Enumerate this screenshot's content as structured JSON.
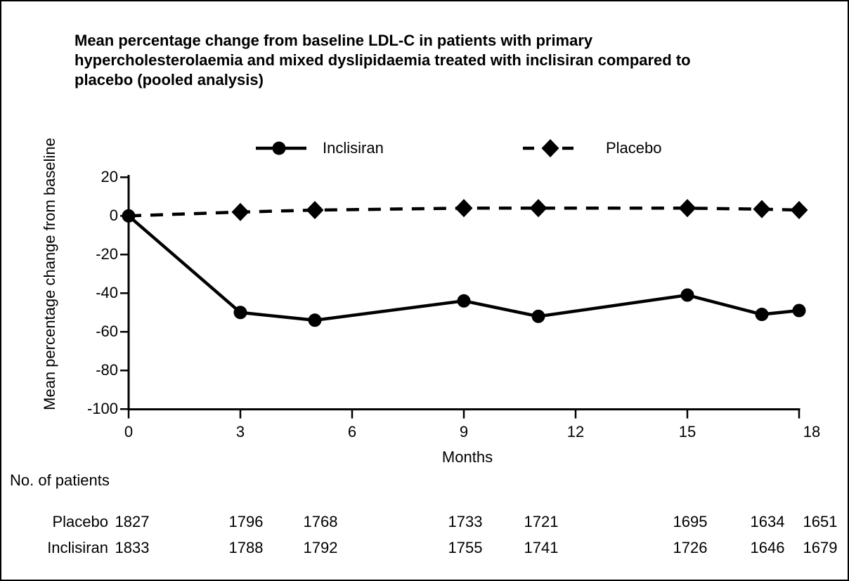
{
  "title": {
    "lines": [
      "Mean percentage change from baseline LDL-C in patients with primary",
      "hypercholesterolaemia and mixed dyslipidaemia treated with inclisiran compared to",
      "placebo (pooled analysis)"
    ]
  },
  "colors": {
    "foreground": "#000000",
    "background": "#ffffff"
  },
  "chart_data": {
    "type": "line",
    "x_label": "Months",
    "y_label": "Mean percentage change from baseline",
    "xlim": [
      0,
      18
    ],
    "ylim": [
      -100,
      20
    ],
    "x_ticks": [
      0,
      3,
      6,
      9,
      12,
      15,
      18
    ],
    "y_ticks": [
      20,
      0,
      -20,
      -40,
      -60,
      -80,
      -100
    ],
    "grid": false,
    "legend_position": "top",
    "x": [
      0,
      3,
      5,
      9,
      11,
      15,
      17,
      18
    ],
    "series": [
      {
        "name": "Inclisiran",
        "marker": "circle",
        "line_style": "solid",
        "values": [
          0,
          -50,
          -54,
          -44,
          -52,
          -41,
          -51,
          -49
        ]
      },
      {
        "name": "Placebo",
        "marker": "diamond",
        "line_style": "dashed",
        "values": [
          0,
          2,
          3,
          4,
          4,
          4,
          3.5,
          3
        ]
      }
    ]
  },
  "patients_table": {
    "heading": "No. of patients",
    "columns_months": [
      0,
      3,
      5,
      9,
      11,
      15,
      17,
      18
    ],
    "rows": [
      {
        "label": "Placebo",
        "values": [
          1827,
          1796,
          1768,
          1733,
          1721,
          1695,
          1634,
          1651
        ]
      },
      {
        "label": "Inclisiran",
        "values": [
          1833,
          1788,
          1792,
          1755,
          1741,
          1726,
          1646,
          1679
        ]
      }
    ]
  }
}
